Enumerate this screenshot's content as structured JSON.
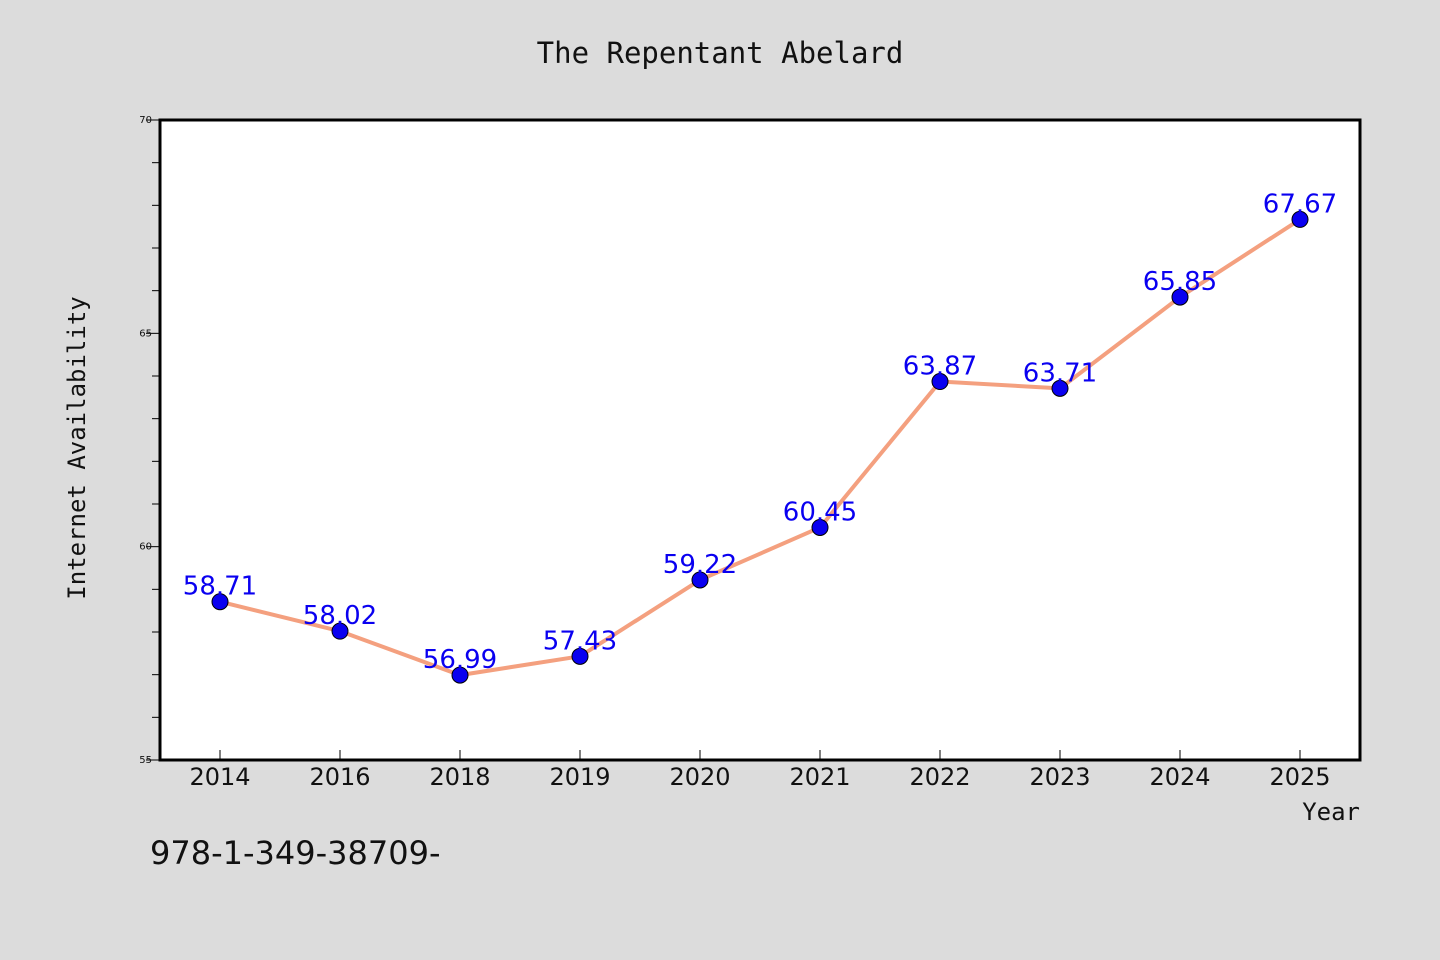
{
  "chart_data": {
    "type": "line",
    "title": "The Repentant Abelard",
    "xlabel": "Year",
    "ylabel": "Internet Availability",
    "categories": [
      "2014",
      "2016",
      "2018",
      "2019",
      "2020",
      "2021",
      "2022",
      "2023",
      "2024",
      "2025"
    ],
    "series": [
      {
        "values": [
          58.71,
          58.02,
          56.99,
          57.43,
          59.22,
          60.45,
          63.87,
          63.71,
          65.85,
          67.67
        ],
        "line_color": "#f4a07f",
        "marker_color": "#0a00f0",
        "label_color": "#0a00f0"
      }
    ],
    "data_labels": [
      "58.71",
      "58.02",
      "56.99",
      "57.43",
      "59.22",
      "60.45",
      "63.87",
      "63.71",
      "65.85",
      "67.67"
    ],
    "ylim": [
      55,
      70
    ],
    "y_major_ticks": [
      55,
      60,
      65,
      70
    ],
    "y_major_tick_labels": [
      "55",
      "60",
      "65",
      "70"
    ],
    "y_minor_step": 1,
    "grid": false,
    "legend": "none"
  },
  "footer": {
    "isbn": "978-1-349-38709-"
  },
  "colors": {
    "background": "#dcdcdc",
    "plot_background": "#ffffff",
    "axes_border": "#000000"
  }
}
